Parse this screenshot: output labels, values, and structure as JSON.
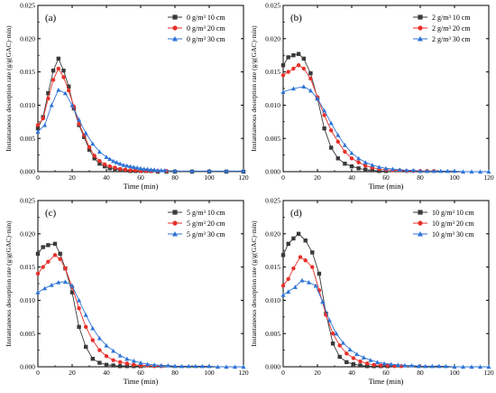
{
  "figure": {
    "ylabel": "Instantaneous desorption rate (g/g(GAC)·min)"
  },
  "chart_data": [
    {
      "type": "line",
      "panel_label": "(a)",
      "xlabel": "Time (min)",
      "ylabel": "Instantaneous desorption rate (g/g(GAC)·min)",
      "xlim": [
        0,
        120
      ],
      "ylim": [
        0,
        0.025
      ],
      "xticks": [
        0,
        20,
        40,
        60,
        80,
        100,
        120
      ],
      "yticks": [
        "0.000",
        "0.005",
        "0.010",
        "0.015",
        "0.020",
        "0.025"
      ],
      "legend_position": "top-right",
      "series": [
        {
          "name": "0 g/m³ 10 cm",
          "marker": "square",
          "color": "#3a3a3a",
          "x": [
            0,
            3,
            6,
            9,
            12,
            15,
            18,
            21,
            24,
            27,
            30,
            33,
            36,
            39,
            42,
            45,
            48,
            51,
            54,
            57,
            60,
            63,
            66,
            70,
            75,
            80,
            90,
            100,
            110,
            120
          ],
          "y": [
            0.0065,
            0.0082,
            0.0118,
            0.0152,
            0.017,
            0.0152,
            0.0128,
            0.0095,
            0.007,
            0.0052,
            0.0033,
            0.002,
            0.0012,
            0.0008,
            0.0005,
            0.0004,
            0.0003,
            0.0002,
            0.0001,
            0.0001,
            0.0001,
            0.0001,
            0.0001,
            0.0,
            0.0,
            0.0,
            0.0,
            0.0,
            0.0,
            0.0
          ]
        },
        {
          "name": "0 g/m³ 20 cm",
          "marker": "circle",
          "color": "#e8302a",
          "x": [
            0,
            3,
            6,
            9,
            12,
            15,
            18,
            21,
            24,
            27,
            30,
            33,
            36,
            39,
            42,
            45,
            48,
            51,
            54,
            57,
            60,
            63,
            66,
            70,
            75
          ],
          "y": [
            0.007,
            0.008,
            0.011,
            0.0138,
            0.0155,
            0.0142,
            0.0122,
            0.0098,
            0.0072,
            0.0055,
            0.0037,
            0.0024,
            0.0016,
            0.0011,
            0.0008,
            0.0006,
            0.0004,
            0.0003,
            0.0002,
            0.0002,
            0.0001,
            0.0001,
            0.0001,
            0.0001,
            0.0001
          ]
        },
        {
          "name": "0 g/m³ 30 cm",
          "marker": "triangle",
          "color": "#2e74d6",
          "x": [
            0,
            4,
            8,
            12,
            16,
            20,
            24,
            28,
            32,
            36,
            40,
            42,
            44,
            46,
            48,
            50,
            52,
            54,
            56,
            58,
            60,
            62,
            64,
            66,
            68,
            70,
            72,
            74,
            80,
            90,
            100,
            110,
            120
          ],
          "y": [
            0.006,
            0.007,
            0.01,
            0.0123,
            0.0118,
            0.01,
            0.0078,
            0.0058,
            0.0042,
            0.003,
            0.0022,
            0.0019,
            0.0016,
            0.0014,
            0.0012,
            0.001,
            0.0009,
            0.0008,
            0.0007,
            0.0006,
            0.0005,
            0.0004,
            0.0004,
            0.0003,
            0.0003,
            0.0002,
            0.0002,
            0.0002,
            0.0001,
            0.0001,
            0.0001,
            0.0001,
            0.0001
          ]
        }
      ]
    },
    {
      "type": "line",
      "panel_label": "(b)",
      "xlabel": "Time (min)",
      "ylabel": "Instantaneous desorption rate (g/g(GAC)·min)",
      "xlim": [
        0,
        120
      ],
      "ylim": [
        0,
        0.025
      ],
      "xticks": [
        0,
        20,
        40,
        60,
        80,
        100,
        120
      ],
      "yticks": [
        "0.000",
        "0.005",
        "0.010",
        "0.015",
        "0.020",
        "0.025"
      ],
      "legend_position": "top-right",
      "series": [
        {
          "name": "2 g/m³ 10 cm",
          "marker": "square",
          "color": "#3a3a3a",
          "x": [
            0,
            3,
            6,
            9,
            12,
            16,
            20,
            24,
            28,
            32,
            36,
            40,
            44,
            48,
            52,
            56,
            60
          ],
          "y": [
            0.016,
            0.0172,
            0.0175,
            0.0177,
            0.017,
            0.0148,
            0.011,
            0.0065,
            0.0036,
            0.002,
            0.0012,
            0.0008,
            0.0005,
            0.0003,
            0.0002,
            0.0001,
            0.0001
          ]
        },
        {
          "name": "2 g/m³ 20 cm",
          "marker": "circle",
          "color": "#e8302a",
          "x": [
            0,
            3,
            6,
            9,
            12,
            16,
            20,
            24,
            28,
            32,
            36,
            40,
            44,
            48,
            52,
            56,
            60,
            64,
            68,
            72,
            76,
            80,
            84,
            88
          ],
          "y": [
            0.0145,
            0.015,
            0.0155,
            0.016,
            0.0155,
            0.014,
            0.0112,
            0.0085,
            0.0062,
            0.0045,
            0.003,
            0.002,
            0.0014,
            0.0009,
            0.0006,
            0.0004,
            0.0003,
            0.0002,
            0.0002,
            0.0001,
            0.0001,
            0.0001,
            0.0001,
            0.0001
          ]
        },
        {
          "name": "2 g/m³ 30 cm",
          "marker": "triangle",
          "color": "#2e74d6",
          "x": [
            0,
            6,
            12,
            16,
            20,
            24,
            28,
            32,
            36,
            40,
            44,
            48,
            52,
            56,
            60,
            64,
            68,
            72,
            76,
            80,
            84,
            88,
            92,
            96,
            100,
            105,
            110,
            115,
            120
          ],
          "y": [
            0.012,
            0.0125,
            0.0128,
            0.0122,
            0.011,
            0.0092,
            0.0073,
            0.0055,
            0.004,
            0.0028,
            0.002,
            0.0014,
            0.001,
            0.0007,
            0.0005,
            0.0004,
            0.0003,
            0.0002,
            0.0002,
            0.0001,
            0.0001,
            0.0001,
            0.0001,
            0.0001,
            0.0001,
            0.0,
            0.0,
            0.0,
            0.0
          ]
        }
      ]
    },
    {
      "type": "line",
      "panel_label": "(c)",
      "xlabel": "Time (min)",
      "ylabel": "Instantaneous desorption rate (g/g(GAC)·min)",
      "xlim": [
        0,
        120
      ],
      "ylim": [
        0,
        0.025
      ],
      "xticks": [
        0,
        20,
        40,
        60,
        80,
        100,
        120
      ],
      "yticks": [
        "0.000",
        "0.005",
        "0.010",
        "0.015",
        "0.020",
        "0.025"
      ],
      "legend_position": "top-right",
      "series": [
        {
          "name": "5 g/m³ 10 cm",
          "marker": "square",
          "color": "#3a3a3a",
          "x": [
            0,
            3,
            6,
            10,
            13,
            16,
            20,
            24,
            28,
            32,
            36,
            40,
            44,
            48,
            52,
            56,
            60
          ],
          "y": [
            0.017,
            0.018,
            0.0183,
            0.0185,
            0.017,
            0.0148,
            0.0112,
            0.006,
            0.003,
            0.0012,
            0.0006,
            0.0003,
            0.0002,
            0.0001,
            0.0001,
            0.0001,
            0.0001
          ]
        },
        {
          "name": "5 g/m³ 20 cm",
          "marker": "circle",
          "color": "#e8302a",
          "x": [
            0,
            3,
            6,
            10,
            13,
            16,
            20,
            24,
            28,
            32,
            36,
            40,
            44,
            48,
            52,
            56,
            60,
            64,
            68,
            72
          ],
          "y": [
            0.014,
            0.015,
            0.0158,
            0.0168,
            0.0162,
            0.0148,
            0.012,
            0.0088,
            0.006,
            0.004,
            0.0025,
            0.0016,
            0.001,
            0.0007,
            0.0005,
            0.0003,
            0.0002,
            0.0002,
            0.0001,
            0.0001
          ]
        },
        {
          "name": "5 g/m³ 30 cm",
          "marker": "triangle",
          "color": "#2e74d6",
          "x": [
            0,
            4,
            8,
            12,
            16,
            20,
            24,
            28,
            32,
            36,
            40,
            44,
            48,
            52,
            56,
            60,
            64,
            68,
            72,
            76,
            80,
            84,
            88,
            92,
            96,
            100,
            105,
            110,
            115,
            120
          ],
          "y": [
            0.0112,
            0.0118,
            0.0123,
            0.0127,
            0.0128,
            0.0122,
            0.01,
            0.0078,
            0.0058,
            0.0043,
            0.0032,
            0.0024,
            0.0017,
            0.0012,
            0.0009,
            0.0006,
            0.0004,
            0.0003,
            0.0002,
            0.0002,
            0.0001,
            0.0001,
            0.0001,
            0.0001,
            0.0001,
            0.0001,
            0.0,
            0.0,
            0.0,
            0.0
          ]
        }
      ]
    },
    {
      "type": "line",
      "panel_label": "(d)",
      "xlabel": "Time (min)",
      "ylabel": "Instantaneous desorption rate (g/g(GAC)·min)",
      "xlim": [
        0,
        120
      ],
      "ylim": [
        0,
        0.025
      ],
      "xticks": [
        0,
        20,
        40,
        60,
        80,
        100,
        120
      ],
      "yticks": [
        "0.000",
        "0.005",
        "0.010",
        "0.015",
        "0.020",
        "0.025"
      ],
      "legend_position": "top-right",
      "series": [
        {
          "name": "10 g/m³ 10 cm",
          "marker": "square",
          "color": "#3a3a3a",
          "x": [
            0,
            3,
            6,
            9,
            13,
            17,
            21,
            25,
            29,
            33,
            37,
            41,
            45,
            49,
            53,
            57,
            61
          ],
          "y": [
            0.0168,
            0.0185,
            0.0193,
            0.02,
            0.019,
            0.0172,
            0.014,
            0.008,
            0.0035,
            0.0015,
            0.0007,
            0.0004,
            0.0002,
            0.0001,
            0.0001,
            0.0001,
            0.0001
          ]
        },
        {
          "name": "10 g/m³ 20 cm",
          "marker": "circle",
          "color": "#e8302a",
          "x": [
            0,
            3,
            6,
            10,
            13,
            17,
            21,
            25,
            29,
            33,
            37,
            41,
            45,
            49,
            53,
            57,
            61,
            65,
            69
          ],
          "y": [
            0.0122,
            0.0132,
            0.0148,
            0.0165,
            0.016,
            0.015,
            0.0115,
            0.0078,
            0.005,
            0.0032,
            0.002,
            0.0013,
            0.0008,
            0.0005,
            0.0003,
            0.0002,
            0.0002,
            0.0001,
            0.0001
          ]
        },
        {
          "name": "10 g/m³ 30 cm",
          "marker": "triangle",
          "color": "#2e74d6",
          "x": [
            0,
            3,
            7,
            11,
            15,
            19,
            23,
            27,
            31,
            35,
            39,
            43,
            47,
            51,
            55,
            59,
            63,
            67,
            71,
            75,
            79,
            83,
            87,
            91,
            95,
            100,
            105,
            110,
            115,
            120
          ],
          "y": [
            0.0108,
            0.0113,
            0.012,
            0.013,
            0.0127,
            0.0122,
            0.0098,
            0.007,
            0.005,
            0.0036,
            0.0026,
            0.0019,
            0.0014,
            0.001,
            0.0007,
            0.0005,
            0.0004,
            0.0003,
            0.0002,
            0.0002,
            0.0001,
            0.0001,
            0.0001,
            0.0001,
            0.0001,
            0.0,
            0.0,
            0.0,
            0.0,
            0.0
          ]
        }
      ]
    }
  ]
}
